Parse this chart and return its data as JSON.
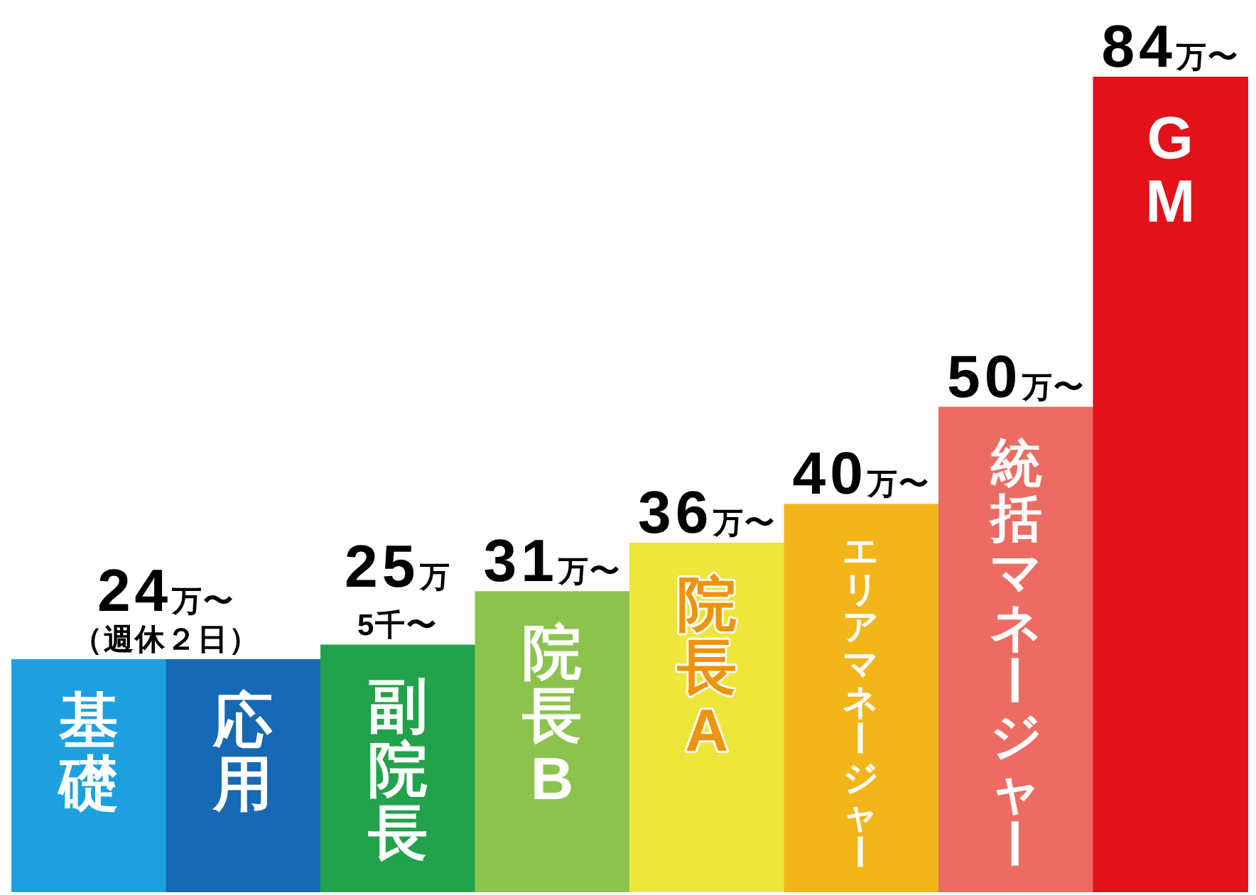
{
  "chart_data": {
    "type": "bar",
    "categories": [
      "基礎",
      "応用",
      "副院長",
      "院長B",
      "院長A",
      "エリアマネージャー",
      "統括マネージャー",
      "GM"
    ],
    "values": [
      24,
      24,
      25.5,
      31,
      36,
      40,
      50,
      84
    ],
    "colors": [
      "#1ea0df",
      "#1769b3",
      "#22a24b",
      "#8cc34f",
      "#eee63a",
      "#f2b61c",
      "#ec6c64",
      "#e11219"
    ],
    "value_labels": [
      "24万〜",
      null,
      "25万5千〜",
      "31万〜",
      "36万〜",
      "40万〜",
      "50万〜",
      "84万〜"
    ],
    "annotations": [
      {
        "text": "（週休２日）",
        "y": 24
      }
    ]
  }
}
